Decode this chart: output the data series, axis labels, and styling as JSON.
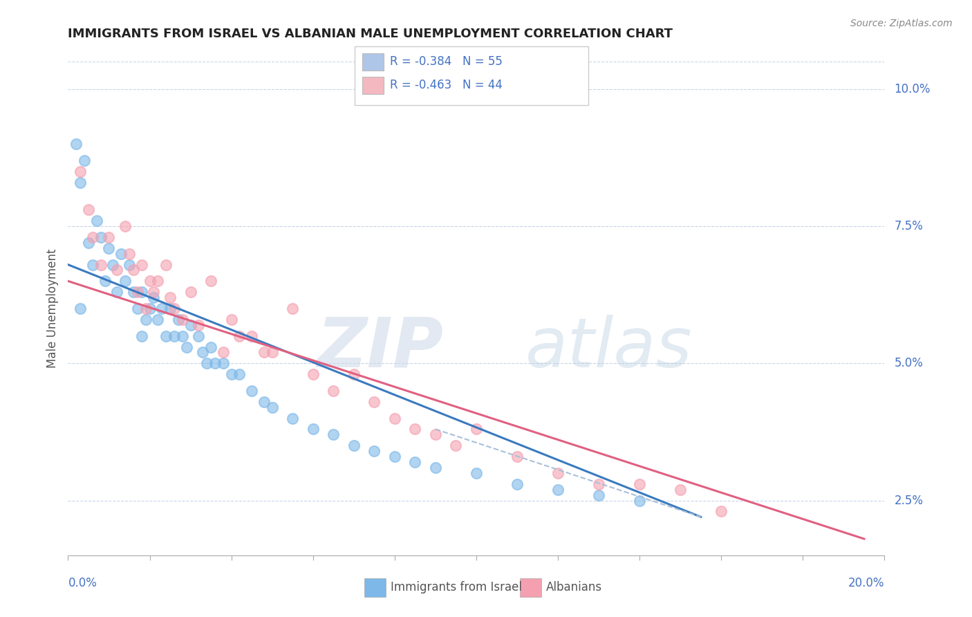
{
  "title": "IMMIGRANTS FROM ISRAEL VS ALBANIAN MALE UNEMPLOYMENT CORRELATION CHART",
  "source": "Source: ZipAtlas.com",
  "ylabel": "Male Unemployment",
  "right_yticks": [
    "10.0%",
    "7.5%",
    "5.0%",
    "2.5%"
  ],
  "right_ytick_vals": [
    0.1,
    0.075,
    0.05,
    0.025
  ],
  "legend_entries": [
    {
      "label": "R = -0.384   N = 55",
      "color": "#aec6e8"
    },
    {
      "label": "R = -0.463   N = 44",
      "color": "#f4b8c1"
    }
  ],
  "legend_labels": [
    "Immigrants from Israel",
    "Albanians"
  ],
  "xmin": 0.0,
  "xmax": 0.2,
  "ymin": 0.015,
  "ymax": 0.105,
  "blue_scatter": [
    [
      0.002,
      0.09
    ],
    [
      0.003,
      0.083
    ],
    [
      0.004,
      0.087
    ],
    [
      0.005,
      0.072
    ],
    [
      0.006,
      0.068
    ],
    [
      0.007,
      0.076
    ],
    [
      0.008,
      0.073
    ],
    [
      0.009,
      0.065
    ],
    [
      0.01,
      0.071
    ],
    [
      0.011,
      0.068
    ],
    [
      0.012,
      0.063
    ],
    [
      0.013,
      0.07
    ],
    [
      0.014,
      0.065
    ],
    [
      0.015,
      0.068
    ],
    [
      0.016,
      0.063
    ],
    [
      0.017,
      0.06
    ],
    [
      0.018,
      0.063
    ],
    [
      0.019,
      0.058
    ],
    [
      0.02,
      0.06
    ],
    [
      0.021,
      0.062
    ],
    [
      0.022,
      0.058
    ],
    [
      0.023,
      0.06
    ],
    [
      0.024,
      0.055
    ],
    [
      0.025,
      0.06
    ],
    [
      0.026,
      0.055
    ],
    [
      0.027,
      0.058
    ],
    [
      0.028,
      0.055
    ],
    [
      0.029,
      0.053
    ],
    [
      0.03,
      0.057
    ],
    [
      0.032,
      0.055
    ],
    [
      0.033,
      0.052
    ],
    [
      0.034,
      0.05
    ],
    [
      0.035,
      0.053
    ],
    [
      0.036,
      0.05
    ],
    [
      0.038,
      0.05
    ],
    [
      0.04,
      0.048
    ],
    [
      0.042,
      0.048
    ],
    [
      0.045,
      0.045
    ],
    [
      0.048,
      0.043
    ],
    [
      0.05,
      0.042
    ],
    [
      0.055,
      0.04
    ],
    [
      0.06,
      0.038
    ],
    [
      0.065,
      0.037
    ],
    [
      0.07,
      0.035
    ],
    [
      0.075,
      0.034
    ],
    [
      0.08,
      0.033
    ],
    [
      0.085,
      0.032
    ],
    [
      0.09,
      0.031
    ],
    [
      0.1,
      0.03
    ],
    [
      0.11,
      0.028
    ],
    [
      0.12,
      0.027
    ],
    [
      0.13,
      0.026
    ],
    [
      0.14,
      0.025
    ],
    [
      0.018,
      0.055
    ],
    [
      0.003,
      0.06
    ]
  ],
  "pink_scatter": [
    [
      0.003,
      0.085
    ],
    [
      0.005,
      0.078
    ],
    [
      0.006,
      0.073
    ],
    [
      0.008,
      0.068
    ],
    [
      0.01,
      0.073
    ],
    [
      0.012,
      0.067
    ],
    [
      0.014,
      0.075
    ],
    [
      0.015,
      0.07
    ],
    [
      0.016,
      0.067
    ],
    [
      0.017,
      0.063
    ],
    [
      0.018,
      0.068
    ],
    [
      0.019,
      0.06
    ],
    [
      0.02,
      0.065
    ],
    [
      0.021,
      0.063
    ],
    [
      0.022,
      0.065
    ],
    [
      0.024,
      0.068
    ],
    [
      0.025,
      0.062
    ],
    [
      0.026,
      0.06
    ],
    [
      0.028,
      0.058
    ],
    [
      0.03,
      0.063
    ],
    [
      0.032,
      0.057
    ],
    [
      0.035,
      0.065
    ],
    [
      0.038,
      0.052
    ],
    [
      0.04,
      0.058
    ],
    [
      0.042,
      0.055
    ],
    [
      0.045,
      0.055
    ],
    [
      0.048,
      0.052
    ],
    [
      0.05,
      0.052
    ],
    [
      0.055,
      0.06
    ],
    [
      0.06,
      0.048
    ],
    [
      0.065,
      0.045
    ],
    [
      0.07,
      0.048
    ],
    [
      0.075,
      0.043
    ],
    [
      0.08,
      0.04
    ],
    [
      0.085,
      0.038
    ],
    [
      0.09,
      0.037
    ],
    [
      0.095,
      0.035
    ],
    [
      0.1,
      0.038
    ],
    [
      0.11,
      0.033
    ],
    [
      0.12,
      0.03
    ],
    [
      0.13,
      0.028
    ],
    [
      0.14,
      0.028
    ],
    [
      0.15,
      0.027
    ],
    [
      0.16,
      0.023
    ]
  ],
  "blue_line": [
    [
      0.0,
      0.068
    ],
    [
      0.155,
      0.022
    ]
  ],
  "pink_line": [
    [
      0.0,
      0.065
    ],
    [
      0.195,
      0.018
    ]
  ],
  "blue_dot_line": [
    [
      0.09,
      0.038
    ],
    [
      0.155,
      0.022
    ]
  ],
  "blue_scatter_color": "#7db8e8",
  "pink_scatter_color": "#f4a0b0",
  "blue_line_color": "#3a7abf",
  "pink_line_color": "#e06080",
  "dot_line_color": "#a8c0d8",
  "background_color": "#ffffff",
  "grid_color": "#c8d4e8",
  "title_color": "#222222",
  "axis_label_color": "#4472c4"
}
